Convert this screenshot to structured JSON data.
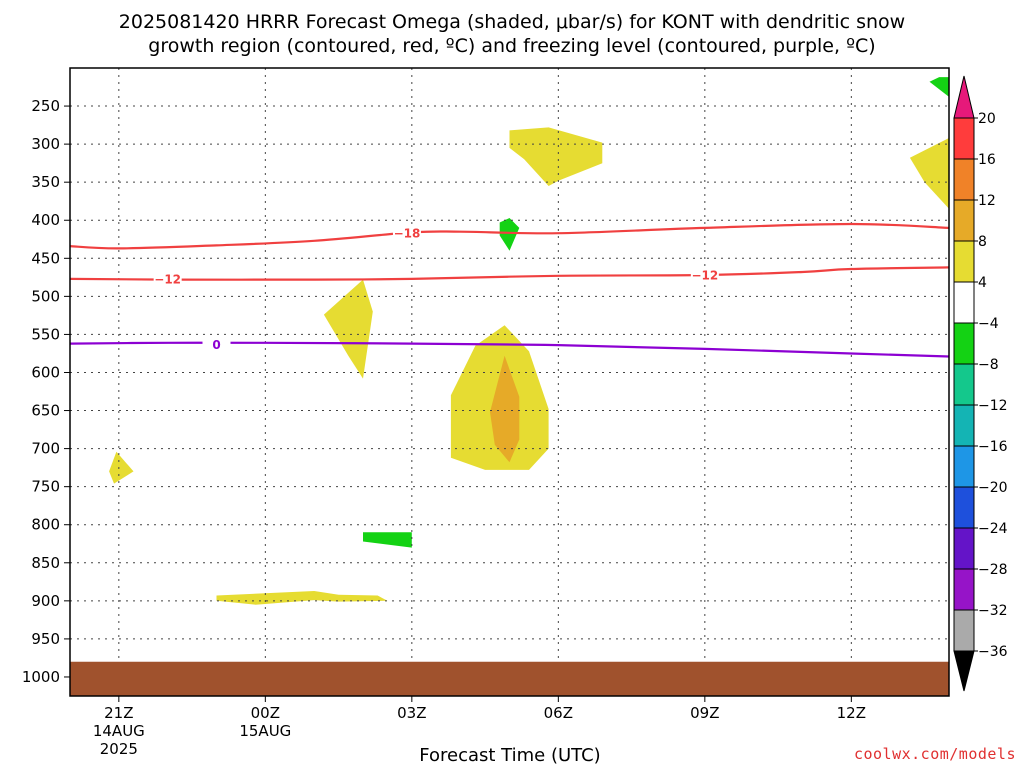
{
  "chart_data": {
    "type": "heatmap",
    "title_line1": "2025081420 HRRR Forecast Omega (shaded, μbar/s) for KONT with dendritic snow",
    "title_line2": "growth region (contoured, red, ºC) and freezing level (contoured, purple, ºC)",
    "xlabel": "Forecast Time (UTC)",
    "credit": "coolwx.com/models",
    "x_ticks": [
      {
        "hour": 0,
        "label": "21Z",
        "sub1": "14AUG",
        "sub2": "2025"
      },
      {
        "hour": 3,
        "label": "00Z",
        "sub1": "15AUG",
        "sub2": ""
      },
      {
        "hour": 6,
        "label": "03Z",
        "sub1": "",
        "sub2": ""
      },
      {
        "hour": 9,
        "label": "06Z",
        "sub1": "",
        "sub2": ""
      },
      {
        "hour": 12,
        "label": "09Z",
        "sub1": "",
        "sub2": ""
      },
      {
        "hour": 15,
        "label": "12Z",
        "sub1": "",
        "sub2": ""
      }
    ],
    "x_range_hours": [
      -1,
      17
    ],
    "y_levels_hpa": [
      250,
      300,
      350,
      400,
      450,
      500,
      550,
      600,
      650,
      700,
      750,
      800,
      850,
      900,
      950,
      1000
    ],
    "y_range_hpa": [
      200,
      1025
    ],
    "grid": true,
    "surface_band_hpa": [
      980,
      1025
    ],
    "surface_color": "#a0522d",
    "colorbar": {
      "labels": [
        "20",
        "16",
        "12",
        "8",
        "4",
        "−4",
        "−8",
        "−12",
        "−16",
        "−20",
        "−24",
        "−28",
        "−32",
        "−36"
      ],
      "segments": [
        {
          "color": "#ff3c3c"
        },
        {
          "color": "#f08228"
        },
        {
          "color": "#e6aa28"
        },
        {
          "color": "#e6dc32"
        },
        {
          "color": "#ffffff"
        },
        {
          "color": "#14d214"
        },
        {
          "color": "#14c88c"
        },
        {
          "color": "#14b4b4"
        },
        {
          "color": "#1e96e6"
        },
        {
          "color": "#1e50dc"
        },
        {
          "color": "#6414c8"
        },
        {
          "color": "#9614c8"
        },
        {
          "color": "#aaaaaa"
        }
      ],
      "top_arrow_color": "#e6197a",
      "bottom_arrow_color": "#000000"
    },
    "contours": [
      {
        "name": "dendritic-upper",
        "color": "#f04040",
        "label": "−18",
        "label_at": [
          5.9,
          417
        ],
        "points": [
          [
            -1,
            434
          ],
          [
            0,
            437
          ],
          [
            2,
            433
          ],
          [
            4,
            427
          ],
          [
            6,
            416
          ],
          [
            7,
            415
          ],
          [
            9,
            417
          ],
          [
            12,
            410
          ],
          [
            15,
            405
          ],
          [
            17,
            410
          ]
        ]
      },
      {
        "name": "dendritic-lower",
        "color": "#f04040",
        "label": "−12",
        "label_at": [
          1.0,
          477
        ],
        "label2_at": [
          12.0,
          472
        ],
        "points": [
          [
            -1,
            477
          ],
          [
            1,
            478
          ],
          [
            4,
            478
          ],
          [
            6,
            477
          ],
          [
            9,
            473
          ],
          [
            12,
            472
          ],
          [
            14,
            468
          ],
          [
            15,
            464
          ],
          [
            17,
            462
          ]
        ]
      },
      {
        "name": "freezing-level",
        "color": "#8c00d2",
        "label": "0",
        "label_at": [
          2.0,
          563
        ],
        "points": [
          [
            -1,
            562
          ],
          [
            1,
            561
          ],
          [
            3,
            561
          ],
          [
            6,
            562
          ],
          [
            9,
            564
          ],
          [
            12,
            569
          ],
          [
            15,
            575
          ],
          [
            17,
            579
          ]
        ]
      }
    ],
    "shaded_regions": [
      {
        "name": "yellow-upper",
        "color": "#e6dc32",
        "points": [
          [
            8.0,
            282
          ],
          [
            8.8,
            278
          ],
          [
            9.9,
            298
          ],
          [
            9.9,
            325
          ],
          [
            9.0,
            348
          ],
          [
            8.8,
            355
          ],
          [
            8.3,
            320
          ],
          [
            8.0,
            305
          ]
        ]
      },
      {
        "name": "yellow-right-edge",
        "color": "#e6dc32",
        "points": [
          [
            17,
            292
          ],
          [
            16.2,
            318
          ],
          [
            16.5,
            350
          ],
          [
            17,
            385
          ]
        ]
      },
      {
        "name": "green-top-right",
        "color": "#14d214",
        "points": [
          [
            16.8,
            212
          ],
          [
            16.6,
            218
          ],
          [
            17,
            238
          ],
          [
            17,
            212
          ]
        ]
      },
      {
        "name": "green-400",
        "color": "#14d214",
        "points": [
          [
            7.8,
            403
          ],
          [
            8.0,
            397
          ],
          [
            8.2,
            410
          ],
          [
            8.0,
            440
          ],
          [
            7.8,
            420
          ]
        ]
      },
      {
        "name": "yellow-center-plume",
        "color": "#e6dc32",
        "points": [
          [
            7.9,
            538
          ],
          [
            8.4,
            572
          ],
          [
            8.8,
            648
          ],
          [
            8.8,
            700
          ],
          [
            8.4,
            728
          ],
          [
            7.5,
            728
          ],
          [
            6.8,
            712
          ],
          [
            6.8,
            630
          ],
          [
            7.3,
            565
          ]
        ]
      },
      {
        "name": "orange-core",
        "color": "#e6aa28",
        "points": [
          [
            7.9,
            578
          ],
          [
            8.2,
            632
          ],
          [
            8.2,
            688
          ],
          [
            8.0,
            718
          ],
          [
            7.7,
            695
          ],
          [
            7.6,
            652
          ]
        ]
      },
      {
        "name": "yellow-mid-left",
        "color": "#e6dc32",
        "points": [
          [
            5.0,
            478
          ],
          [
            5.2,
            520
          ],
          [
            5.0,
            608
          ],
          [
            4.7,
            578
          ],
          [
            4.2,
            524
          ]
        ]
      },
      {
        "name": "yellow-750",
        "color": "#e6dc32",
        "points": [
          [
            -0.05,
            704
          ],
          [
            0.3,
            730
          ],
          [
            -0.1,
            746
          ],
          [
            -0.2,
            730
          ]
        ]
      },
      {
        "name": "green-815",
        "color": "#14d214",
        "points": [
          [
            5.0,
            810
          ],
          [
            6.0,
            810
          ],
          [
            6.0,
            830
          ],
          [
            5.0,
            822
          ]
        ]
      },
      {
        "name": "yellow-900",
        "color": "#e6dc32",
        "points": [
          [
            2.0,
            893
          ],
          [
            4.0,
            887
          ],
          [
            4.5,
            892
          ],
          [
            5.3,
            893
          ],
          [
            5.5,
            900
          ],
          [
            4.5,
            901
          ],
          [
            4.0,
            899
          ],
          [
            2.8,
            905
          ],
          [
            2.0,
            900
          ]
        ]
      }
    ]
  }
}
